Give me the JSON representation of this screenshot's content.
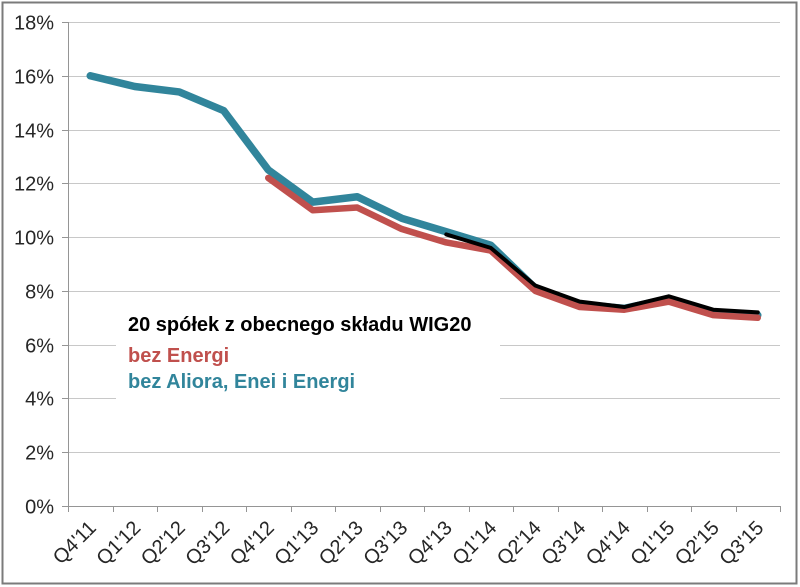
{
  "chart_data": {
    "type": "line",
    "title": "",
    "categories": [
      "Q4'11",
      "Q1'12",
      "Q2'12",
      "Q3'12",
      "Q4'12",
      "Q1'13",
      "Q2'13",
      "Q3'13",
      "Q4'13",
      "Q1'14",
      "Q2'14",
      "Q3'14",
      "Q4'14",
      "Q1'15",
      "Q2'15",
      "Q3'15"
    ],
    "y_axis": {
      "min": 0,
      "max": 18,
      "step": 2,
      "tick_suffix": "%",
      "tick_labels": [
        "0%",
        "2%",
        "4%",
        "6%",
        "8%",
        "10%",
        "12%",
        "14%",
        "16%",
        "18%"
      ]
    },
    "x_axis": {
      "label_rotation_deg": -45
    },
    "grid": true,
    "legend": {
      "position": "inside-plot-left",
      "entries": [
        {
          "id": "wig20-20-spolek",
          "label": "20 spółek z obecnego składu WIG20",
          "color": "#000000"
        },
        {
          "id": "bez-energi",
          "label": "bez Energi",
          "color": "#C0504D"
        },
        {
          "id": "bez-aliora-enei-energi",
          "label": "bez Aliora, Enei i Energi",
          "color": "#31859B"
        }
      ]
    },
    "series": [
      {
        "id": "bez-aliora-enei-energi",
        "name": "bez Aliora, Enei i Energi",
        "color": "#31859B",
        "line_width": 7.5,
        "values": [
          16.0,
          15.6,
          15.4,
          14.7,
          12.5,
          11.3,
          11.5,
          10.7,
          10.2,
          9.7,
          8.1,
          7.5,
          7.35,
          7.7,
          7.2,
          7.1
        ]
      },
      {
        "id": "bez-energi",
        "name": "bez Energi",
        "color": "#C0504D",
        "line_width": 6.5,
        "values": [
          null,
          null,
          null,
          null,
          12.2,
          11.0,
          11.1,
          10.3,
          9.8,
          9.5,
          8.0,
          7.4,
          7.3,
          7.6,
          7.1,
          7.0
        ]
      },
      {
        "id": "wig20-20-spolek",
        "name": "20 spółek z obecnego składu WIG20",
        "color": "#000000",
        "line_width": 4,
        "values": [
          null,
          null,
          null,
          null,
          null,
          null,
          null,
          null,
          10.1,
          9.6,
          8.2,
          7.6,
          7.4,
          7.8,
          7.3,
          7.2
        ]
      }
    ]
  },
  "style_colors": {
    "gridline": "#C8C8C8",
    "axis": "#959595",
    "tick_text": "#262626",
    "frame_border": "#7B7B7B",
    "background": "#FFFFFF"
  }
}
